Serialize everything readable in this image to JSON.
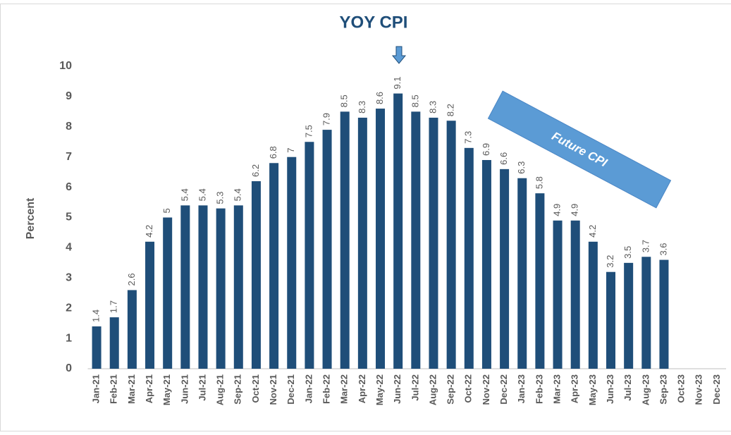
{
  "chart_data": {
    "type": "bar",
    "title": "YOY CPI",
    "ylabel": "Percent",
    "annotation": "Future CPI",
    "categories": [
      "Jan-21",
      "Feb-21",
      "Mar-21",
      "Apr-21",
      "May-21",
      "Jun-21",
      "Jul-21",
      "Aug-21",
      "Sep-21",
      "Oct-21",
      "Nov-21",
      "Dec-21",
      "Jan-22",
      "Feb-22",
      "Mar-22",
      "Apr-22",
      "May-22",
      "Jun-22",
      "Jul-22",
      "Aug-22",
      "Sep-22",
      "Oct-22",
      "Nov-22",
      "Dec-22",
      "Jan-23",
      "Feb-23",
      "Mar-23",
      "Apr-23",
      "May-23",
      "Jun-23",
      "Jul-23",
      "Aug-23",
      "Sep-23",
      "Oct-23",
      "Nov-23",
      "Dec-23"
    ],
    "values": [
      1.4,
      1.7,
      2.6,
      4.2,
      5,
      5.4,
      5.4,
      5.3,
      5.4,
      6.2,
      6.8,
      7,
      7.5,
      7.9,
      8.5,
      8.3,
      8.6,
      9.1,
      8.5,
      8.3,
      8.2,
      7.3,
      6.9,
      6.6,
      6.3,
      5.8,
      4.9,
      4.9,
      4.2,
      3.2,
      3.5,
      3.7,
      3.6,
      null,
      null,
      null
    ],
    "color": "#1f4e79",
    "ylim": [
      0,
      10
    ],
    "yticks": [
      0,
      1,
      2,
      3,
      4,
      5,
      6,
      7,
      8,
      9,
      10
    ],
    "grid": false
  }
}
